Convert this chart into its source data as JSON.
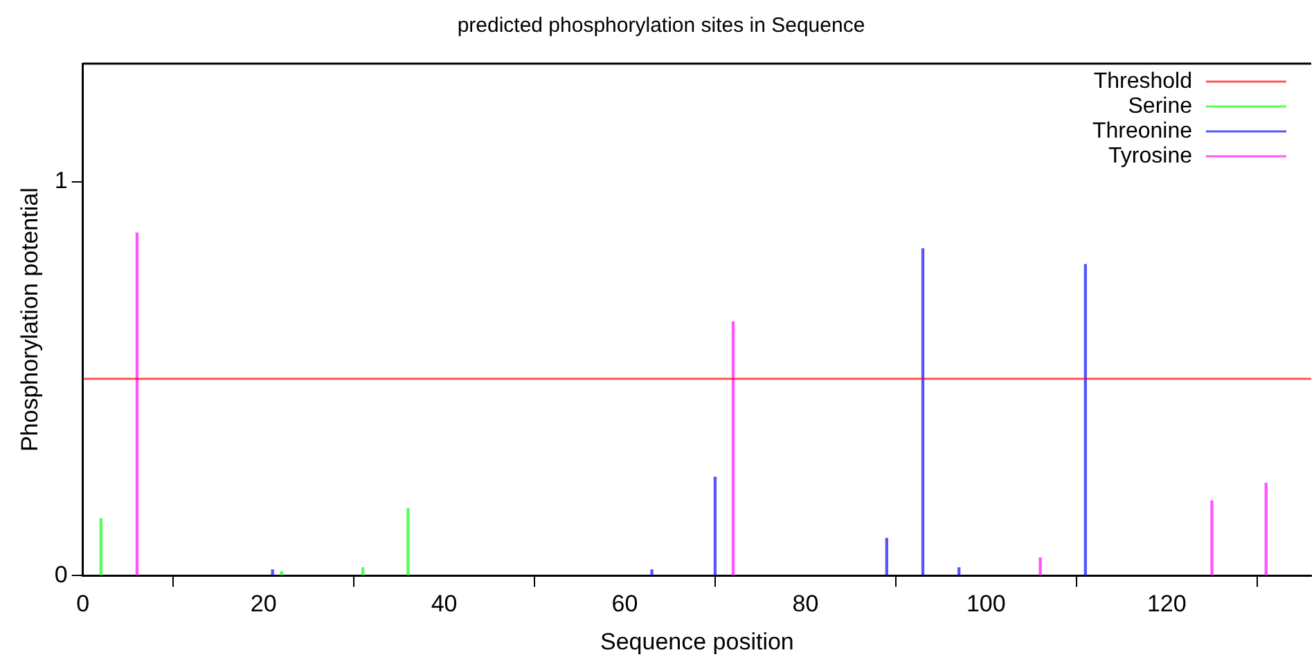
{
  "chart_data": {
    "type": "bar",
    "title": "predicted phosphorylation sites in Sequence",
    "xlabel": "Sequence position",
    "ylabel": "Phosphorylation potential",
    "xlim": [
      0,
      136
    ],
    "xticks": [
      0,
      20,
      40,
      60,
      80,
      100,
      120
    ],
    "ylim": [
      0,
      1.3
    ],
    "yticks": [
      0,
      1
    ],
    "series": [
      {
        "name": "Serine",
        "color": "#00ff00",
        "x": [
          2,
          22,
          31,
          36
        ],
        "values": [
          0.145,
          0.01,
          0.02,
          0.17
        ]
      },
      {
        "name": "Threonine",
        "color": "#0000ff",
        "x": [
          21,
          63,
          70,
          89,
          93,
          97,
          111
        ],
        "values": [
          0.015,
          0.015,
          0.25,
          0.095,
          0.83,
          0.02,
          0.79
        ]
      },
      {
        "name": "Tyrosine",
        "color": "#ff00ff",
        "x": [
          6,
          72,
          106,
          125,
          131
        ],
        "values": [
          0.87,
          0.645,
          0.045,
          0.19,
          0.235
        ]
      }
    ],
    "ref_lines": [
      {
        "axis": "y",
        "value": 0.5,
        "label": "Threshold",
        "color": "#ff0000"
      }
    ],
    "legend": "top right",
    "grid": false
  }
}
